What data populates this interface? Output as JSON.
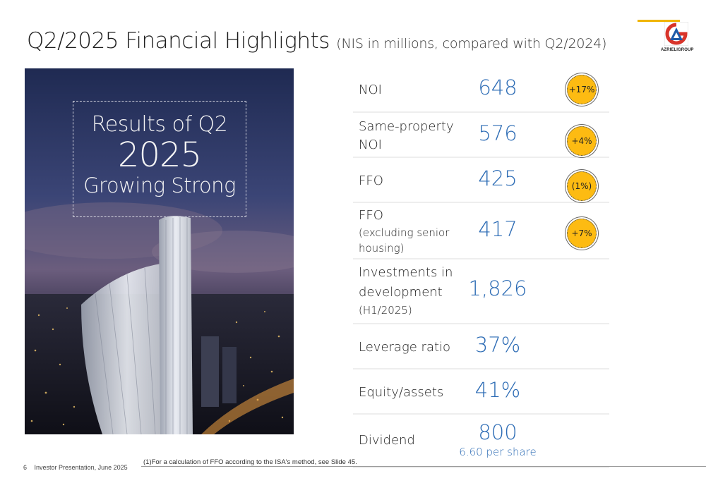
{
  "header": {
    "title": "Q2/2025 Financial Highlights",
    "subtitle": "(NIS in millions, compared with Q2/2024)",
    "logo_text": "AZRIELIGROUP",
    "colors": {
      "accent": "#f0b400",
      "value_blue": "#2d6cb5",
      "badge": "#fdbb12",
      "logo_red": "#d8342a",
      "logo_blue": "#1e5aa8"
    }
  },
  "hero": {
    "line1": "Results of Q2",
    "line2": "2025",
    "line3": "Growing Strong"
  },
  "metrics": [
    {
      "label": "NOI",
      "value": "648",
      "badge": "+17%"
    },
    {
      "label_line1": "Same-property",
      "label_line2": "NOI",
      "value": "576",
      "badge": "+4%"
    },
    {
      "label": "FFO",
      "value": "425",
      "badge": "(1%)"
    },
    {
      "label_line1": "FFO",
      "label_line2": "(excluding senior",
      "label_line3": "housing)",
      "value": "417",
      "badge": "+7%"
    },
    {
      "label_line1": "Investments in",
      "label_line2": "development",
      "label_line3": "(H1/2025)",
      "value": "1,826"
    },
    {
      "label": "Leverage ratio",
      "value": "37%"
    },
    {
      "label": "Equity/assets",
      "value": "41%"
    },
    {
      "label": "Dividend",
      "value": "800",
      "subvalue": "6.60 per share"
    }
  ],
  "footer": {
    "page_number": "6",
    "presentation": "Investor Presentation, June 2025",
    "footnote": "(1)For a calculation of FFO according to the ISA's method, see Slide 45."
  }
}
